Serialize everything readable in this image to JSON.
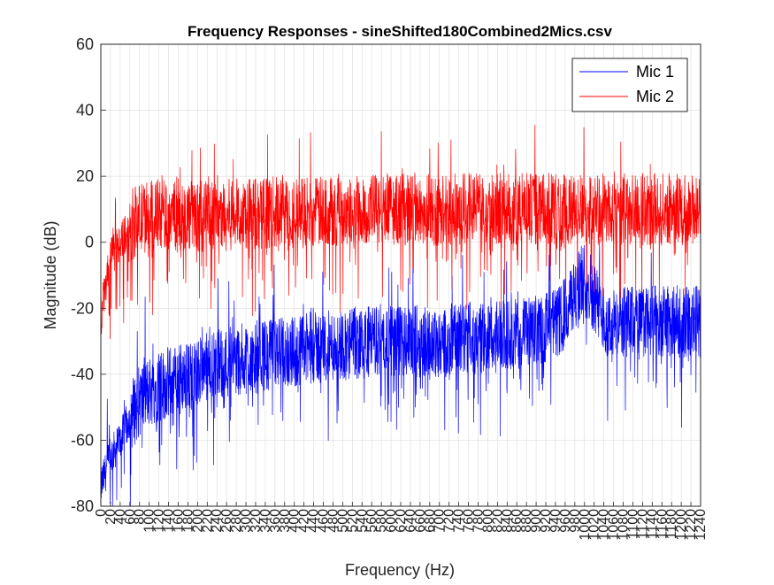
{
  "chart_data": {
    "type": "line",
    "title": "Frequency Responses - sineShifted180Combined2Mics.csv",
    "xlabel": "Frequency (Hz)",
    "ylabel": "Magnitude (dB)",
    "xlim": [
      0,
      1240
    ],
    "ylim": [
      -80,
      60
    ],
    "x_tick_step": 20,
    "y_ticks": [
      -80,
      -60,
      -40,
      -20,
      0,
      20,
      40,
      60
    ],
    "grid": true,
    "legend_position": "top-right",
    "colors": {
      "Mic 1": "#0000ff",
      "Mic 2": "#ff0000",
      "grid": "#dcdcdc",
      "axis": "#262626"
    },
    "series": [
      {
        "name": "Mic 1",
        "x": [
          0,
          20,
          40,
          60,
          80,
          100,
          150,
          200,
          250,
          300,
          350,
          400,
          450,
          500,
          550,
          600,
          650,
          700,
          750,
          800,
          850,
          900,
          950,
          1000,
          1050,
          1100,
          1150,
          1200,
          1240
        ],
        "values": [
          -74,
          -65,
          -60,
          -53,
          -48,
          -45,
          -42,
          -40,
          -37,
          -35,
          -34,
          -33,
          -32,
          -31,
          -30,
          -30,
          -30,
          -30,
          -29,
          -29,
          -28,
          -27,
          -24,
          -10,
          -25,
          -24,
          -24,
          -24,
          -24
        ]
      },
      {
        "name": "Mic 2",
        "x": [
          0,
          20,
          40,
          60,
          80,
          100,
          150,
          200,
          250,
          300,
          350,
          400,
          450,
          500,
          550,
          600,
          650,
          700,
          750,
          800,
          850,
          900,
          950,
          1000,
          1050,
          1100,
          1150,
          1200,
          1240
        ],
        "values": [
          -22,
          -5,
          0,
          5,
          7,
          8,
          8,
          8,
          8,
          9,
          9,
          9,
          9,
          10,
          10,
          10,
          10,
          10,
          10,
          10,
          10,
          10,
          10,
          10,
          10,
          10,
          10,
          10,
          10
        ]
      }
    ]
  }
}
